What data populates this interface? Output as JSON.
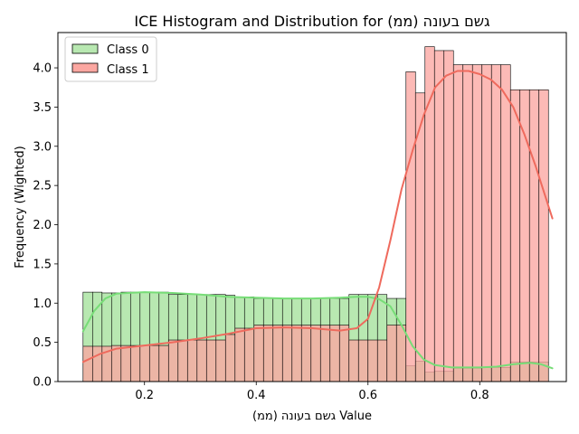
{
  "chart_data": {
    "type": "histogram",
    "title": "ICE Histogram and Distribution for גשם בעונה (ממ)",
    "xlabel": "גשם בעונה (ממ) Value",
    "ylabel": "Frequency (Wighted)",
    "xlim": [
      0.045,
      0.955
    ],
    "ylim": [
      0,
      4.45
    ],
    "x_ticks": [
      0.2,
      0.4,
      0.6,
      0.8
    ],
    "y_ticks": [
      0.0,
      0.5,
      1.0,
      1.5,
      2.0,
      2.5,
      3.0,
      3.5,
      4.0
    ],
    "grid": false,
    "legend_position": "top-left",
    "bin_edges": [
      0.09,
      0.107,
      0.124,
      0.141,
      0.158,
      0.175,
      0.192,
      0.209,
      0.226,
      0.243,
      0.26,
      0.277,
      0.294,
      0.311,
      0.328,
      0.345,
      0.362,
      0.379,
      0.396,
      0.413,
      0.43,
      0.447,
      0.464,
      0.481,
      0.498,
      0.515,
      0.532,
      0.549,
      0.566,
      0.583,
      0.6,
      0.617,
      0.634,
      0.651,
      0.668,
      0.685,
      0.702,
      0.719,
      0.736,
      0.753,
      0.77,
      0.787,
      0.804,
      0.821,
      0.838,
      0.855,
      0.872,
      0.889,
      0.906,
      0.923
    ],
    "series": [
      {
        "name": "Class 0",
        "color": "#77dd77",
        "bar_fill": "#b8e8b1",
        "values": [
          1.14,
          1.14,
          1.13,
          1.13,
          1.14,
          1.14,
          1.14,
          1.14,
          1.14,
          1.11,
          1.11,
          1.11,
          1.11,
          1.11,
          1.11,
          1.1,
          1.08,
          1.08,
          1.06,
          1.06,
          1.06,
          1.06,
          1.06,
          1.06,
          1.06,
          1.06,
          1.06,
          1.06,
          1.11,
          1.11,
          1.11,
          1.11,
          1.06,
          1.06,
          0.2,
          0.26,
          0.12,
          0.13,
          0.13,
          0.17,
          0.17,
          0.17,
          0.18,
          0.18,
          0.18,
          0.25,
          0.25,
          0.25,
          0.25
        ],
        "kde_x": [
          0.09,
          0.11,
          0.13,
          0.15,
          0.17,
          0.2,
          0.25,
          0.3,
          0.35,
          0.4,
          0.45,
          0.5,
          0.55,
          0.58,
          0.6,
          0.62,
          0.64,
          0.66,
          0.68,
          0.7,
          0.72,
          0.75,
          0.78,
          0.8,
          0.83,
          0.86,
          0.89,
          0.91,
          0.93
        ],
        "kde_y": [
          0.64,
          0.9,
          1.06,
          1.12,
          1.13,
          1.14,
          1.13,
          1.11,
          1.08,
          1.07,
          1.06,
          1.06,
          1.07,
          1.08,
          1.08,
          1.05,
          0.96,
          0.72,
          0.45,
          0.28,
          0.21,
          0.18,
          0.18,
          0.18,
          0.19,
          0.22,
          0.24,
          0.22,
          0.17
        ]
      },
      {
        "name": "Class 1",
        "color": "#ef6a5d",
        "bar_fill": "#fba7a1",
        "values": [
          0.45,
          0.45,
          0.45,
          0.46,
          0.46,
          0.46,
          0.46,
          0.46,
          0.46,
          0.53,
          0.53,
          0.53,
          0.53,
          0.53,
          0.53,
          0.6,
          0.68,
          0.68,
          0.72,
          0.72,
          0.72,
          0.72,
          0.72,
          0.72,
          0.72,
          0.72,
          0.72,
          0.72,
          0.53,
          0.53,
          0.53,
          0.53,
          0.72,
          0.72,
          3.95,
          3.68,
          4.27,
          4.22,
          4.22,
          4.04,
          4.04,
          4.04,
          4.04,
          4.04,
          4.04,
          3.72,
          3.72,
          3.72,
          3.72
        ],
        "kde_x": [
          0.09,
          0.12,
          0.15,
          0.2,
          0.25,
          0.3,
          0.35,
          0.4,
          0.45,
          0.5,
          0.55,
          0.58,
          0.6,
          0.62,
          0.64,
          0.66,
          0.68,
          0.7,
          0.72,
          0.74,
          0.76,
          0.78,
          0.8,
          0.82,
          0.84,
          0.86,
          0.88,
          0.9,
          0.93
        ],
        "kde_y": [
          0.25,
          0.35,
          0.42,
          0.46,
          0.5,
          0.55,
          0.61,
          0.68,
          0.69,
          0.68,
          0.65,
          0.68,
          0.8,
          1.2,
          1.8,
          2.45,
          2.95,
          3.4,
          3.75,
          3.9,
          3.96,
          3.96,
          3.92,
          3.85,
          3.72,
          3.5,
          3.15,
          2.75,
          2.08
        ]
      }
    ]
  }
}
